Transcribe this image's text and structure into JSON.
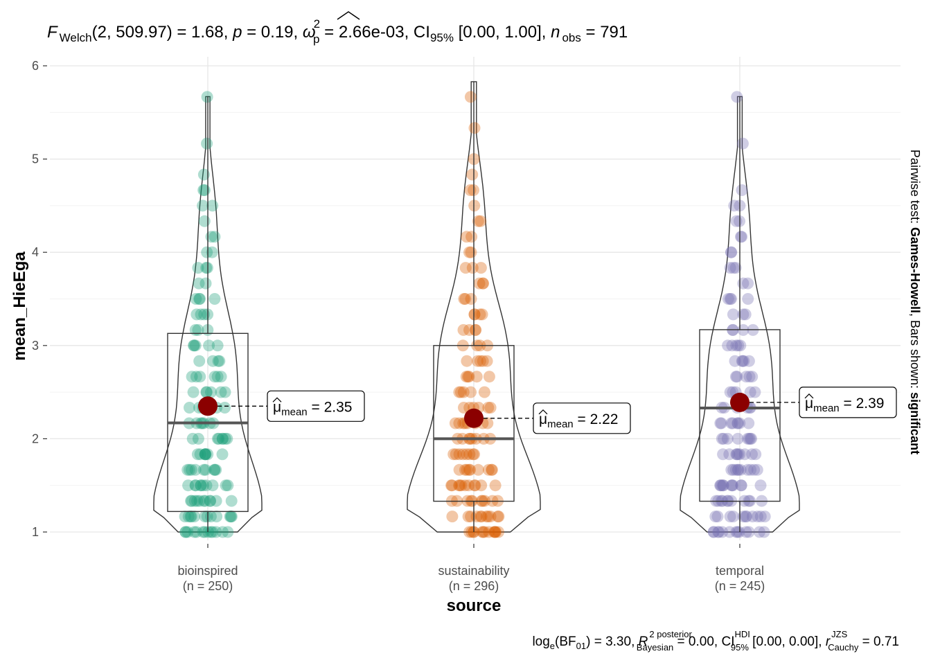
{
  "chart_data": {
    "type": "violin-box-scatter",
    "title_parts": {
      "f": "F",
      "welch": "Welch",
      "df": "(2, 509.97)",
      "stat": " = 1.68, ",
      "p": "p",
      "p_value": " = 0.19, ",
      "omega": "ω",
      "omega_sup": "2",
      "omega_sub": "p",
      "omega_value": " = 2.66e-03, CI",
      "ci_sub": "95%",
      "ci_value": " [0.00, 1.00], ",
      "n": "n",
      "n_sub": "obs",
      "n_value": " = 791"
    },
    "xlabel": "source",
    "ylabel": "mean_HieEga",
    "ylim": [
      1,
      6
    ],
    "y_ticks": [
      "1",
      "2",
      "3",
      "4",
      "5",
      "6"
    ],
    "grid": true,
    "side_caption": {
      "prefix": "Pairwise test: ",
      "test": "Games-Howell",
      "middle": ", Bars shown: ",
      "shown": "significant"
    },
    "footer_parts": {
      "log": "log",
      "log_sub": "e",
      "bf": "(BF",
      "bf_sub": "01",
      "bf_value": ") = 3.30, ",
      "r": "R",
      "r_sup": "2 posterior",
      "r_sub": "Bayesian",
      "r_value": " = 0.00, CI",
      "ci_sup": "HDI",
      "ci_sub": "95%",
      "ci_value": " [0.00, 0.00], ",
      "rc": "r",
      "rc_sup": "JZS",
      "rc_sub": "Cauchy",
      "rc_value": " = 0.71"
    },
    "groups": [
      {
        "name": "bioinspired",
        "n_label": "(n = 250)",
        "color": "#1B9E77",
        "mean": 2.35,
        "mean_label": "2.35",
        "median": 2.17,
        "q1": 1.22,
        "q3": 3.13,
        "whisker_low": 1.0,
        "whisker_high": 5.67,
        "ymin": 1.0,
        "ymax": 5.67
      },
      {
        "name": "sustainability",
        "n_label": "(n = 296)",
        "color": "#D95F02",
        "mean": 2.22,
        "mean_label": "2.22",
        "median": 2.0,
        "q1": 1.33,
        "q3": 3.0,
        "whisker_low": 1.0,
        "whisker_high": 5.83,
        "ymin": 1.0,
        "ymax": 5.83
      },
      {
        "name": "temporal",
        "n_label": "(n = 245)",
        "color": "#7570B3",
        "mean": 2.39,
        "mean_label": "2.39",
        "median": 2.33,
        "q1": 1.33,
        "q3": 3.17,
        "whisker_low": 1.0,
        "whisker_high": 5.67,
        "ymin": 1.0,
        "ymax": 5.67
      }
    ],
    "mean_symbol": "μ",
    "mean_sub": "mean",
    "mean_eq": " = "
  }
}
